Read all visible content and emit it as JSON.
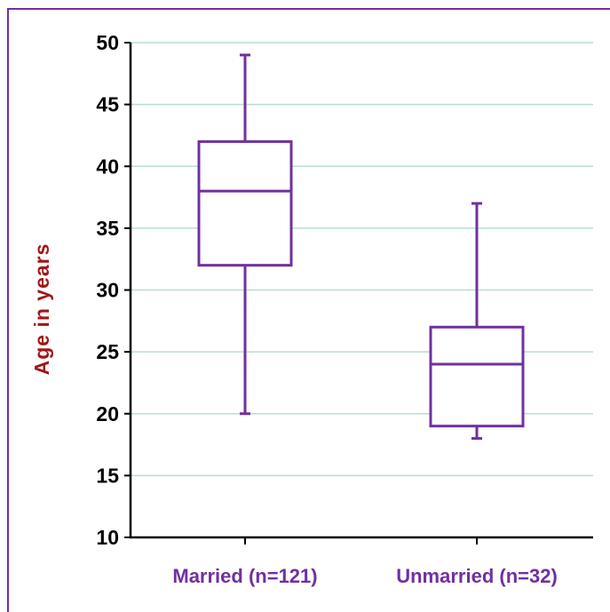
{
  "chart_data": {
    "type": "boxplot",
    "title": "",
    "xlabel": "",
    "ylabel": "Age in years",
    "ylim": [
      10,
      50
    ],
    "y_ticks": [
      10,
      15,
      20,
      25,
      30,
      35,
      40,
      45,
      50
    ],
    "grid": true,
    "legend": "none",
    "categories": [
      "Married (n=121)",
      "Unmarried (n=32)"
    ],
    "boxes": [
      {
        "category": "Married (n=121)",
        "min": 20,
        "q1": 32,
        "median": 38,
        "q3": 42,
        "max": 49
      },
      {
        "category": "Unmarried (n=32)",
        "min": 18,
        "q1": 19,
        "median": 24,
        "q3": 27,
        "max": 37
      }
    ],
    "colors": {
      "box": "#7030a0",
      "grid": "#b9dcd6",
      "axis": "#000000",
      "ylabel": "#a01818",
      "category_label": "#7030a0",
      "frame": "#7030a0"
    }
  }
}
